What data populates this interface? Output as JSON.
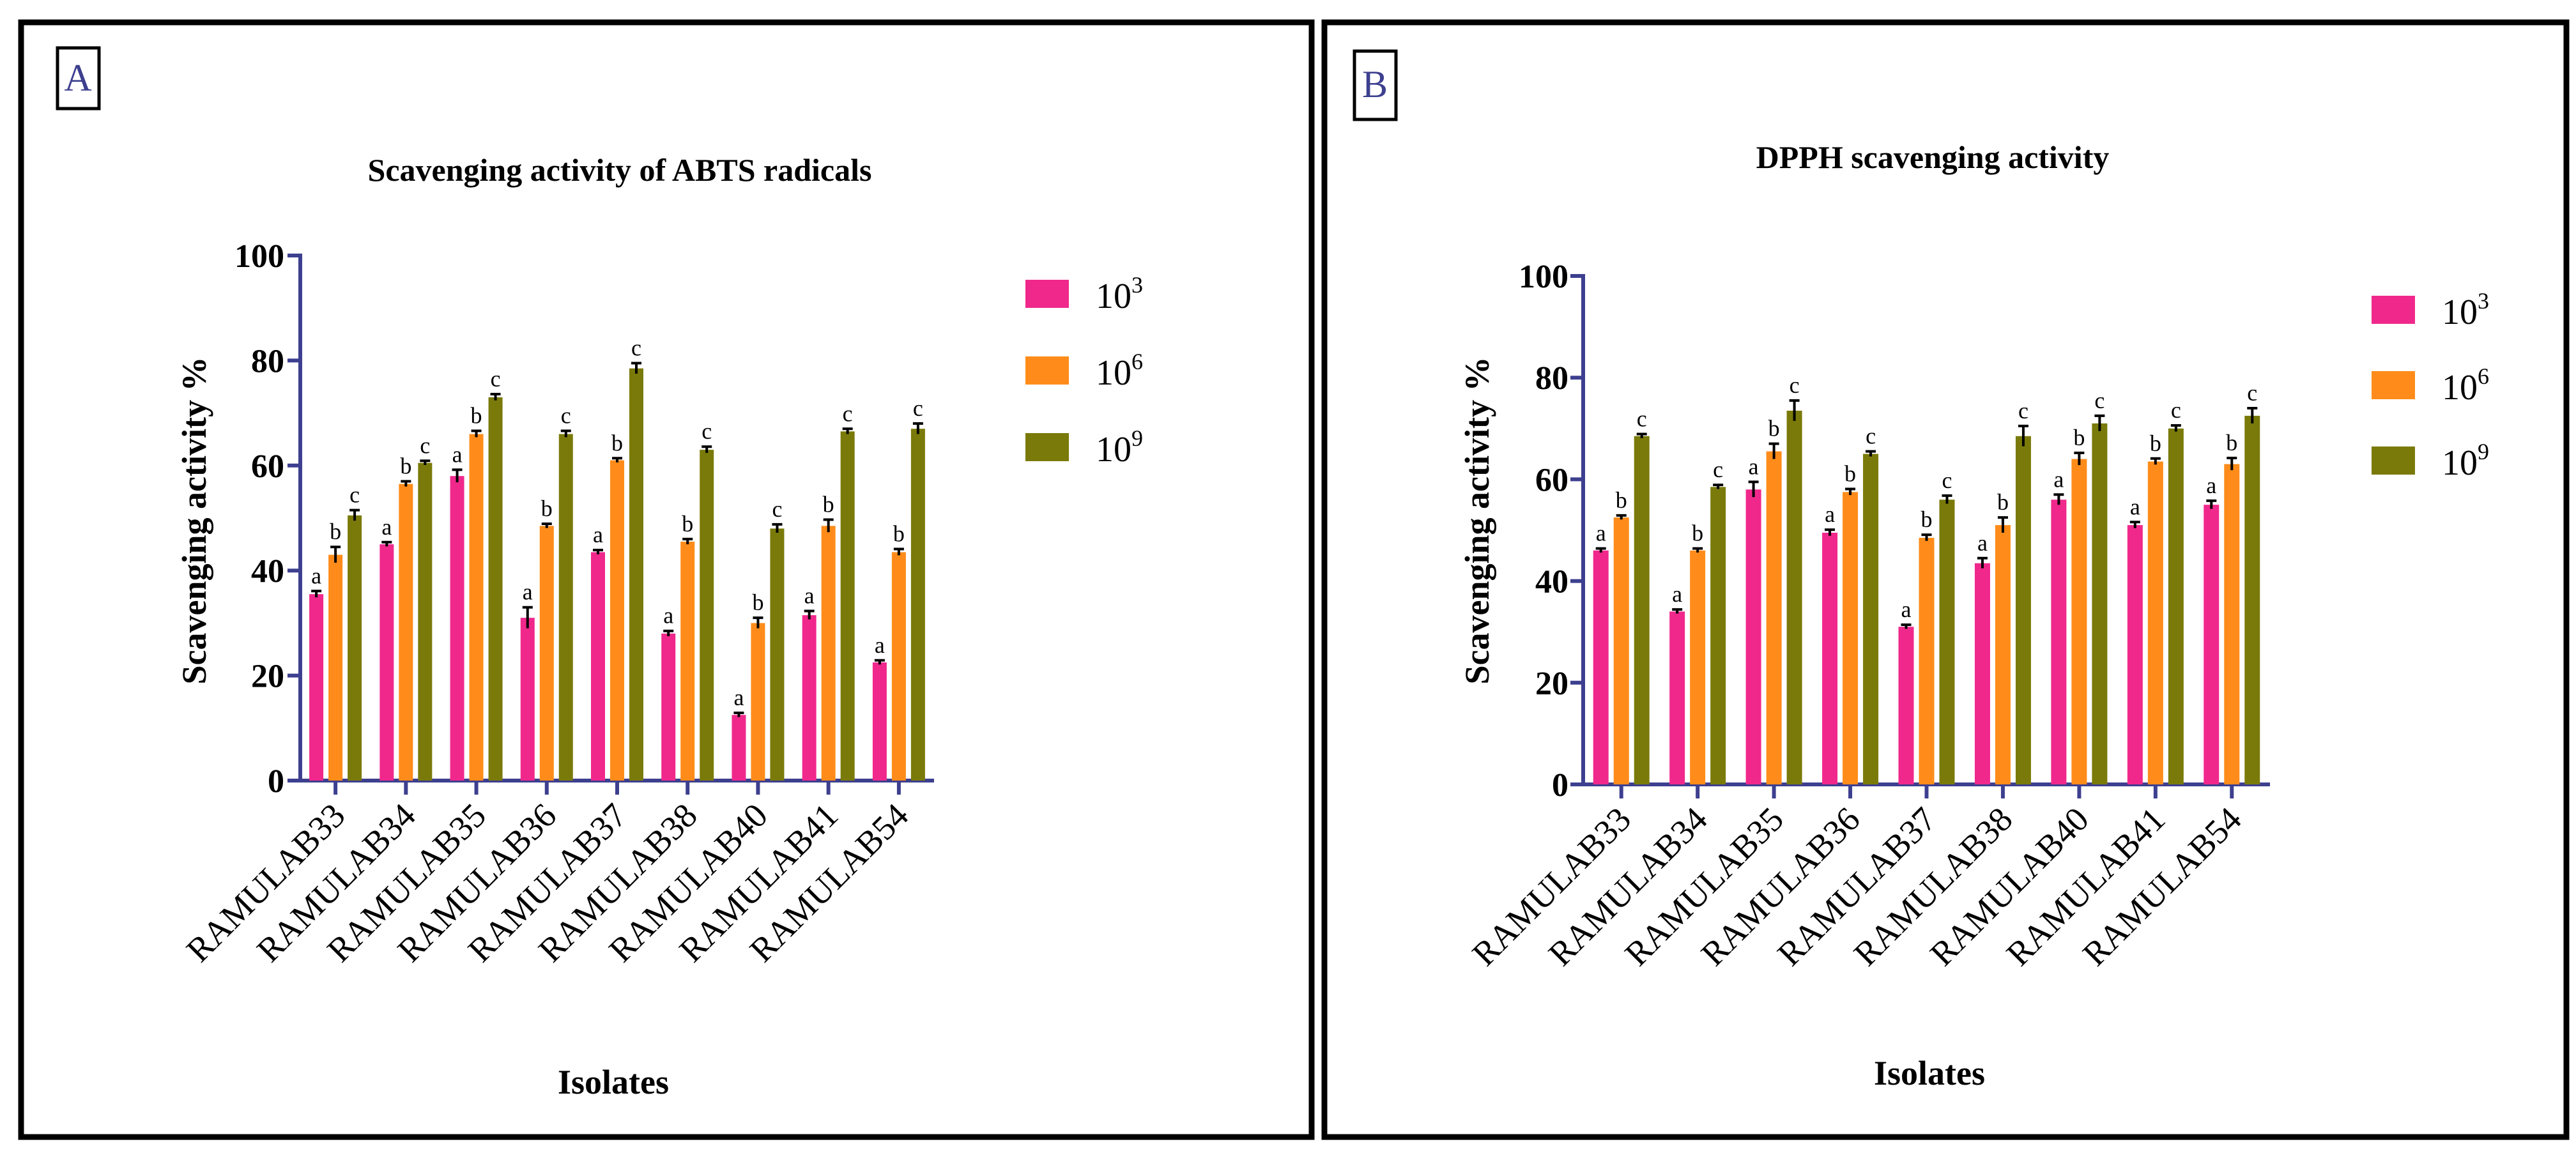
{
  "colors": {
    "s1": "#f0288c",
    "s2": "#ff8c1a",
    "s3": "#7a7a0a",
    "axis": "#3d3f8f"
  },
  "panels": [
    {
      "label": "A",
      "chart_data": {
        "type": "bar",
        "title": "Scavenging activity of ABTS radicals",
        "xlabel": "Isolates",
        "ylabel": "Scavenging activity %",
        "ylim": [
          0,
          100
        ],
        "yticks": [
          "0",
          "20",
          "40",
          "60",
          "80",
          "100"
        ],
        "categories": [
          "RAMULAB33",
          "RAMULAB34",
          "RAMULAB35",
          "RAMULAB36",
          "RAMULAB37",
          "RAMULAB38",
          "RAMULAB40",
          "RAMULAB41",
          "RAMULAB54"
        ],
        "legend_position": "top-right",
        "series": [
          {
            "name": "10",
            "sup": "3",
            "values": [
              35.5,
              45,
              58,
              31,
              43.5,
              28,
              12.5,
              31.5,
              22.5
            ],
            "errors": [
              0.6,
              0.4,
              1.2,
              2.0,
              0.4,
              0.5,
              0.4,
              0.8,
              0.4
            ],
            "letters": [
              "a",
              "a",
              "a",
              "a",
              "a",
              "a",
              "a",
              "a",
              "a"
            ]
          },
          {
            "name": "10",
            "sup": "6",
            "values": [
              43,
              56.5,
              66,
              48.5,
              61,
              45.5,
              30,
              48.5,
              43.5
            ],
            "errors": [
              1.5,
              0.5,
              0.6,
              0.4,
              0.4,
              0.5,
              1.0,
              1.2,
              0.6
            ],
            "letters": [
              "b",
              "b",
              "b",
              "b",
              "b",
              "b",
              "b",
              "b",
              "b"
            ]
          },
          {
            "name": "10",
            "sup": "9",
            "values": [
              50.5,
              60.5,
              73,
              66,
              78.5,
              63,
              48,
              66.5,
              67
            ],
            "errors": [
              1.0,
              0.4,
              0.6,
              0.6,
              1.0,
              0.6,
              0.8,
              0.5,
              1.0
            ],
            "letters": [
              "c",
              "c",
              "c",
              "c",
              "c",
              "c",
              "c",
              "c",
              "c"
            ]
          }
        ]
      }
    },
    {
      "label": "B",
      "chart_data": {
        "type": "bar",
        "title": "DPPH scavenging activity",
        "xlabel": "Isolates",
        "ylabel": "Scavenging activity %",
        "ylim": [
          0,
          100
        ],
        "yticks": [
          "0",
          "20",
          "40",
          "60",
          "80",
          "100"
        ],
        "categories": [
          "RAMULAB33",
          "RAMULAB34",
          "RAMULAB35",
          "RAMULAB36",
          "RAMULAB37",
          "RAMULAB38",
          "RAMULAB40",
          "RAMULAB41",
          "RAMULAB54"
        ],
        "legend_position": "top-right",
        "series": [
          {
            "name": "10",
            "sup": "3",
            "values": [
              46,
              34,
              58,
              49.5,
              31,
              43.5,
              56,
              51,
              55
            ],
            "errors": [
              0.4,
              0.4,
              1.5,
              0.6,
              0.4,
              1.0,
              1.0,
              0.6,
              0.8
            ],
            "letters": [
              "a",
              "a",
              "a",
              "a",
              "a",
              "a",
              "a",
              "a",
              "a"
            ]
          },
          {
            "name": "10",
            "sup": "6",
            "values": [
              52.5,
              46,
              65.5,
              57.5,
              48.5,
              51,
              64,
              63.5,
              63
            ],
            "errors": [
              0.4,
              0.4,
              1.5,
              0.6,
              0.6,
              1.5,
              1.2,
              0.6,
              1.2
            ],
            "letters": [
              "b",
              "b",
              "b",
              "b",
              "b",
              "b",
              "b",
              "b",
              "b"
            ]
          },
          {
            "name": "10",
            "sup": "9",
            "values": [
              68.5,
              58.5,
              73.5,
              65,
              56,
              68.5,
              71,
              70,
              72.5
            ],
            "errors": [
              0.4,
              0.4,
              2.0,
              0.5,
              0.8,
              2.0,
              1.5,
              0.6,
              1.5
            ],
            "letters": [
              "c",
              "c",
              "c",
              "c",
              "c",
              "c",
              "c",
              "c",
              "c"
            ]
          }
        ]
      }
    }
  ]
}
